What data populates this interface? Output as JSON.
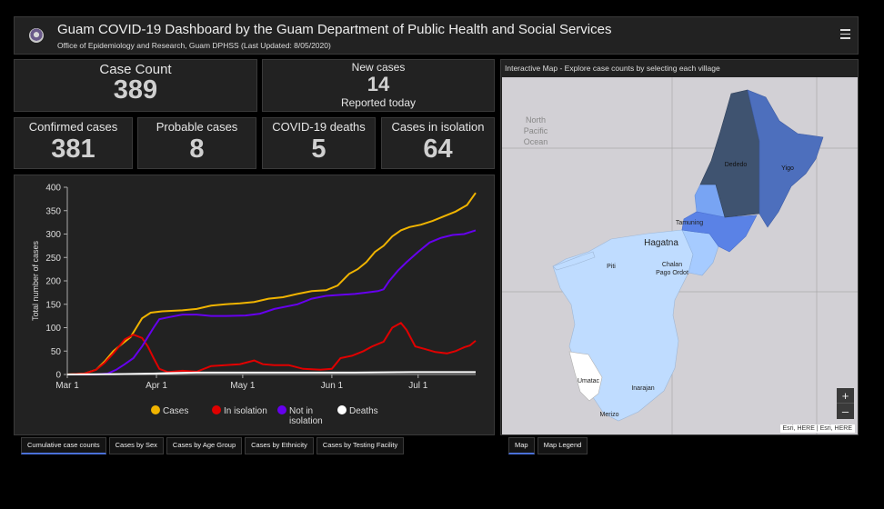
{
  "header": {
    "title": "Guam COVID-19 Dashboard by the Guam Department of Public Health and Social Services",
    "subtitle": "Office of Epidemiology and Research, Guam DPHSS (Last Updated: 8/05/2020)",
    "logo_icon": "seal-icon",
    "menu_icon": "hamburger-icon"
  },
  "indicators": {
    "case_count": {
      "label": "Case Count",
      "value": "389"
    },
    "new_cases": {
      "label": "New cases",
      "value": "14",
      "sub": "Reported today"
    },
    "confirmed": {
      "label": "Confirmed cases",
      "value": "381"
    },
    "probable": {
      "label": "Probable cases",
      "value": "8"
    },
    "deaths": {
      "label": "COVID-19 deaths",
      "value": "5"
    },
    "isolation": {
      "label": "Cases in isolation",
      "value": "64"
    }
  },
  "chart_data": {
    "type": "line",
    "title": "",
    "ylabel": "Total number of cases",
    "xlabel": "",
    "ylim": [
      0,
      400
    ],
    "yticks": [
      0,
      50,
      100,
      150,
      200,
      250,
      300,
      350,
      400
    ],
    "xticks": [
      {
        "label": "Mar 1",
        "day": 0
      },
      {
        "label": "Apr 1",
        "day": 31
      },
      {
        "label": "May 1",
        "day": 61
      },
      {
        "label": "Jun 1",
        "day": 92
      },
      {
        "label": "Jul 1",
        "day": 122
      }
    ],
    "xlim_days": [
      0,
      142
    ],
    "legend_position": "bottom",
    "series": [
      {
        "name": "Cases",
        "color": "#f0b400",
        "points": [
          [
            0,
            0
          ],
          [
            6,
            2
          ],
          [
            10,
            10
          ],
          [
            13,
            28
          ],
          [
            16,
            50
          ],
          [
            19,
            65
          ],
          [
            22,
            80
          ],
          [
            24,
            100
          ],
          [
            26,
            120
          ],
          [
            29,
            132
          ],
          [
            33,
            135
          ],
          [
            40,
            137
          ],
          [
            45,
            140
          ],
          [
            50,
            147
          ],
          [
            55,
            150
          ],
          [
            60,
            152
          ],
          [
            65,
            155
          ],
          [
            70,
            162
          ],
          [
            75,
            165
          ],
          [
            80,
            172
          ],
          [
            85,
            178
          ],
          [
            90,
            180
          ],
          [
            94,
            190
          ],
          [
            98,
            215
          ],
          [
            101,
            225
          ],
          [
            104,
            240
          ],
          [
            107,
            262
          ],
          [
            110,
            275
          ],
          [
            113,
            295
          ],
          [
            116,
            308
          ],
          [
            119,
            315
          ],
          [
            123,
            320
          ],
          [
            127,
            328
          ],
          [
            131,
            338
          ],
          [
            135,
            348
          ],
          [
            139,
            362
          ],
          [
            142,
            388
          ]
        ]
      },
      {
        "name": "In isolation",
        "color": "#e00000",
        "points": [
          [
            0,
            0
          ],
          [
            6,
            2
          ],
          [
            10,
            10
          ],
          [
            13,
            25
          ],
          [
            16,
            45
          ],
          [
            18,
            60
          ],
          [
            20,
            75
          ],
          [
            23,
            85
          ],
          [
            26,
            78
          ],
          [
            28,
            60
          ],
          [
            30,
            35
          ],
          [
            32,
            12
          ],
          [
            35,
            5
          ],
          [
            40,
            8
          ],
          [
            45,
            6
          ],
          [
            50,
            18
          ],
          [
            55,
            20
          ],
          [
            60,
            22
          ],
          [
            65,
            30
          ],
          [
            68,
            22
          ],
          [
            72,
            20
          ],
          [
            77,
            20
          ],
          [
            82,
            12
          ],
          [
            88,
            10
          ],
          [
            92,
            12
          ],
          [
            95,
            35
          ],
          [
            99,
            40
          ],
          [
            103,
            50
          ],
          [
            106,
            60
          ],
          [
            110,
            70
          ],
          [
            113,
            100
          ],
          [
            116,
            110
          ],
          [
            118,
            95
          ],
          [
            121,
            60
          ],
          [
            124,
            55
          ],
          [
            128,
            48
          ],
          [
            132,
            45
          ],
          [
            135,
            50
          ],
          [
            138,
            58
          ],
          [
            140,
            62
          ],
          [
            142,
            72
          ]
        ]
      },
      {
        "name": "Not in isolation",
        "color": "#6600ee",
        "points": [
          [
            0,
            0
          ],
          [
            10,
            0
          ],
          [
            14,
            2
          ],
          [
            17,
            10
          ],
          [
            20,
            22
          ],
          [
            23,
            35
          ],
          [
            26,
            60
          ],
          [
            28,
            80
          ],
          [
            30,
            100
          ],
          [
            32,
            118
          ],
          [
            35,
            122
          ],
          [
            40,
            128
          ],
          [
            45,
            128
          ],
          [
            50,
            125
          ],
          [
            55,
            125
          ],
          [
            62,
            126
          ],
          [
            67,
            130
          ],
          [
            72,
            140
          ],
          [
            80,
            150
          ],
          [
            85,
            162
          ],
          [
            90,
            168
          ],
          [
            95,
            170
          ],
          [
            100,
            172
          ],
          [
            104,
            175
          ],
          [
            108,
            178
          ],
          [
            110,
            182
          ],
          [
            112,
            200
          ],
          [
            115,
            222
          ],
          [
            118,
            240
          ],
          [
            122,
            262
          ],
          [
            126,
            282
          ],
          [
            130,
            292
          ],
          [
            134,
            298
          ],
          [
            138,
            300
          ],
          [
            142,
            308
          ]
        ]
      },
      {
        "name": "Deaths",
        "color": "#ffffff",
        "points": [
          [
            0,
            0
          ],
          [
            20,
            1
          ],
          [
            30,
            2
          ],
          [
            35,
            3
          ],
          [
            45,
            4
          ],
          [
            60,
            4
          ],
          [
            100,
            4
          ],
          [
            120,
            5
          ],
          [
            142,
            5
          ]
        ]
      }
    ]
  },
  "map": {
    "header": "Interactive Map - Explore case counts by selecting each village",
    "ocean_label_line1": "North",
    "ocean_label_line2": "Pacific",
    "ocean_label_line3": "Ocean",
    "villages": {
      "dededo": "Dededo",
      "yigo": "Yigo",
      "tamuning": "Tamuning",
      "hagatna": "Hagatna",
      "piti": "Piti",
      "chalan_line1": "Chalan",
      "chalan_line2": "Pago Ordot",
      "umatac": "Umatac",
      "inarajan": "Inarajan",
      "merizo": "Merizo"
    },
    "zoom_in": "+",
    "zoom_out": "–",
    "attribution": "Esri, HERE | Esri, HERE",
    "colors": {
      "high": "#3f5370",
      "mid_high": "#4d6fbd",
      "mid": "#5a82e6",
      "mid_low": "#78a4f3",
      "low": "#a6cbff",
      "lowest": "#bfdcff",
      "none": "#ffffff"
    }
  },
  "tabs_left": [
    {
      "label": "Cumulative case counts",
      "active": true
    },
    {
      "label": "Cases by Sex",
      "active": false
    },
    {
      "label": "Cases by Age Group",
      "active": false
    },
    {
      "label": "Cases by Ethnicity",
      "active": false
    },
    {
      "label": "Cases by Testing Facility",
      "active": false
    }
  ],
  "tabs_right": [
    {
      "label": "Map",
      "active": true
    },
    {
      "label": "Map Legend",
      "active": false
    }
  ]
}
